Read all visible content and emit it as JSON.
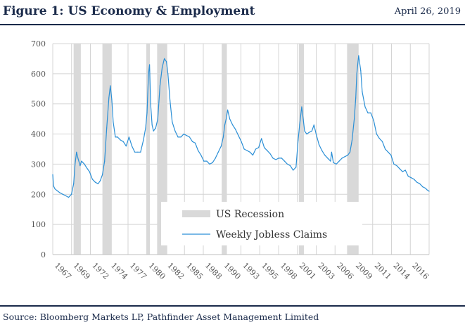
{
  "header": {
    "title": "Figure 1: US Economy & Employment",
    "date": "April 26, 2019"
  },
  "footer": {
    "source": "Source: Bloomberg Markets LP, Pathfinder Asset Management Limited"
  },
  "colors": {
    "line": "#2b8fd6",
    "recession": "#d9d9d9",
    "grid": "#d4d4d4",
    "text": "#1a2a4a"
  },
  "chart_data": {
    "type": "line",
    "title": "",
    "xlabel": "",
    "ylabel": "",
    "ylim": [
      0,
      700
    ],
    "yticks": [
      0,
      100,
      200,
      300,
      400,
      500,
      600,
      700
    ],
    "xlim": [
      1967.0,
      2019.3
    ],
    "xtick_labels": [
      "1967",
      "1969",
      "1972",
      "1974",
      "1977",
      "1980",
      "1982",
      "1985",
      "1988",
      "1990",
      "1993",
      "1995",
      "1998",
      "2001",
      "2003",
      "2006",
      "2009",
      "2011",
      "2014",
      "2016"
    ],
    "grid": true,
    "legend_position": "lower-center",
    "legend": [
      "US Recession",
      "Weekly Jobless Claims"
    ],
    "recessions": [
      {
        "start": 1969.9,
        "end": 1970.9
      },
      {
        "start": 1973.9,
        "end": 1975.2
      },
      {
        "start": 1980.0,
        "end": 1980.5
      },
      {
        "start": 1981.5,
        "end": 1982.9
      },
      {
        "start": 1990.5,
        "end": 1991.2
      },
      {
        "start": 2001.2,
        "end": 2001.9
      },
      {
        "start": 2007.9,
        "end": 2009.5
      }
    ],
    "series": [
      {
        "name": "Weekly Jobless Claims",
        "x": [
          1967.0,
          1967.1,
          1967.3,
          1967.6,
          1968.0,
          1968.4,
          1968.8,
          1969.2,
          1969.6,
          1969.9,
          1970.1,
          1970.3,
          1970.5,
          1970.8,
          1971.0,
          1971.4,
          1971.8,
          1972.1,
          1972.5,
          1972.9,
          1973.3,
          1973.6,
          1973.9,
          1974.2,
          1974.5,
          1974.8,
          1975.0,
          1975.2,
          1975.4,
          1975.7,
          1976.0,
          1976.4,
          1976.8,
          1977.2,
          1977.6,
          1978.0,
          1978.4,
          1978.8,
          1979.2,
          1979.6,
          1979.9,
          1980.1,
          1980.3,
          1980.45,
          1980.6,
          1980.8,
          1981.0,
          1981.3,
          1981.6,
          1981.9,
          1982.2,
          1982.5,
          1982.8,
          1983.0,
          1983.3,
          1983.6,
          1984.0,
          1984.4,
          1984.8,
          1985.2,
          1985.6,
          1986.0,
          1986.4,
          1986.8,
          1987.2,
          1987.6,
          1988.0,
          1988.4,
          1988.8,
          1989.2,
          1989.6,
          1990.0,
          1990.4,
          1990.7,
          1990.9,
          1991.1,
          1991.3,
          1991.6,
          1992.0,
          1992.4,
          1992.8,
          1993.2,
          1993.6,
          1994.0,
          1994.4,
          1994.8,
          1995.2,
          1995.6,
          1996.0,
          1996.4,
          1996.8,
          1997.2,
          1997.6,
          1998.0,
          1998.4,
          1998.8,
          1999.2,
          1999.6,
          2000.0,
          2000.4,
          2000.8,
          2001.1,
          2001.3,
          2001.6,
          2001.8,
          2002.0,
          2002.3,
          2002.6,
          2003.0,
          2003.3,
          2003.6,
          2004.0,
          2004.4,
          2004.8,
          2005.2,
          2005.6,
          2005.75,
          2006.0,
          2006.4,
          2006.8,
          2007.2,
          2007.6,
          2008.0,
          2008.3,
          2008.6,
          2008.9,
          2009.1,
          2009.25,
          2009.5,
          2009.8,
          2010.0,
          2010.4,
          2010.8,
          2011.2,
          2011.6,
          2012.0,
          2012.4,
          2012.8,
          2013.2,
          2013.6,
          2014.0,
          2014.4,
          2014.8,
          2015.2,
          2015.6,
          2016.0,
          2016.4,
          2016.8,
          2017.2,
          2017.6,
          2018.0,
          2018.4,
          2018.8,
          2019.0,
          2019.3
        ],
        "values": [
          265,
          228,
          218,
          212,
          205,
          200,
          195,
          190,
          200,
          235,
          300,
          340,
          320,
          295,
          310,
          300,
          285,
          275,
          250,
          240,
          235,
          245,
          265,
          310,
          420,
          520,
          560,
          515,
          440,
          390,
          390,
          380,
          375,
          360,
          390,
          360,
          340,
          340,
          340,
          380,
          420,
          470,
          600,
          630,
          500,
          430,
          410,
          420,
          450,
          560,
          620,
          650,
          640,
          600,
          510,
          440,
          410,
          390,
          390,
          400,
          395,
          390,
          375,
          370,
          345,
          330,
          310,
          310,
          300,
          305,
          320,
          340,
          360,
          390,
          430,
          450,
          480,
          450,
          430,
          415,
          395,
          375,
          350,
          345,
          340,
          330,
          350,
          355,
          385,
          355,
          345,
          335,
          320,
          315,
          320,
          320,
          310,
          300,
          295,
          280,
          290,
          380,
          430,
          490,
          450,
          410,
          400,
          405,
          410,
          430,
          400,
          365,
          345,
          330,
          320,
          310,
          340,
          305,
          300,
          310,
          320,
          325,
          330,
          340,
          380,
          450,
          520,
          600,
          660,
          610,
          540,
          490,
          470,
          470,
          445,
          400,
          385,
          375,
          350,
          340,
          330,
          300,
          295,
          285,
          275,
          280,
          260,
          255,
          250,
          240,
          235,
          225,
          220,
          215,
          210
        ]
      }
    ]
  }
}
